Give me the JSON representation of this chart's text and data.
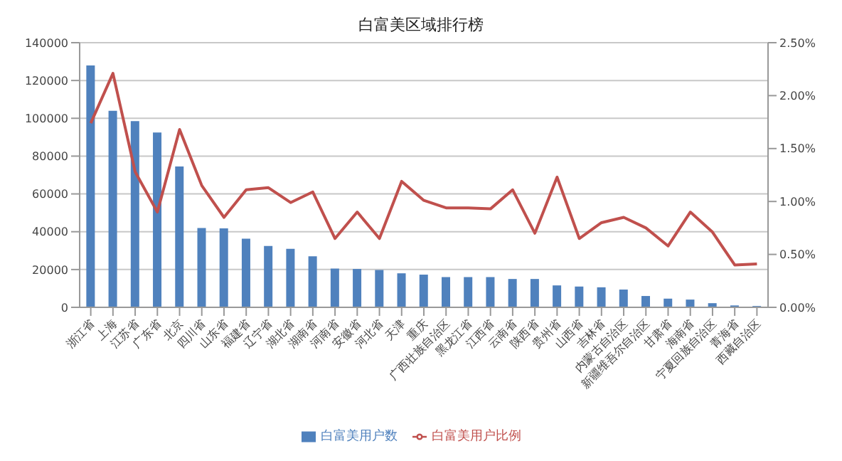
{
  "chart_data": {
    "type": "bar",
    "title": "白富美区域排行榜",
    "categories": [
      "浙江省",
      "上海",
      "江苏省",
      "广东省",
      "北京",
      "四川省",
      "山东省",
      "福建省",
      "辽宁省",
      "湖北省",
      "湖南省",
      "河南省",
      "安徽省",
      "河北省",
      "天津",
      "重庆",
      "广西壮族自治区",
      "黑龙江省",
      "江西省",
      "云南省",
      "陕西省",
      "贵州省",
      "山西省",
      "吉林省",
      "内蒙古自治区",
      "新疆维吾尔自治区",
      "甘肃省",
      "海南省",
      "宁夏回族自治区",
      "青海省",
      "西藏自治区"
    ],
    "series": [
      {
        "name": "白富美用户数",
        "color": "#4f81bd",
        "values": [
          128000,
          104000,
          98500,
          92500,
          74500,
          42000,
          41800,
          36300,
          32500,
          31000,
          27000,
          20500,
          20300,
          19800,
          18000,
          17300,
          16000,
          16000,
          16000,
          15000,
          15000,
          11600,
          11000,
          10600,
          9400,
          6000,
          4600,
          4100,
          2200,
          1000,
          700
        ]
      },
      {
        "name": "白富美用户比例",
        "type": "line",
        "axis": "y2",
        "color": "#c0504d",
        "values": [
          1.74,
          2.21,
          1.28,
          0.9,
          1.68,
          1.15,
          0.85,
          1.11,
          1.13,
          0.99,
          1.09,
          0.65,
          0.9,
          0.65,
          1.19,
          1.01,
          0.94,
          0.94,
          0.93,
          1.11,
          0.7,
          1.23,
          0.65,
          0.8,
          0.85,
          0.75,
          0.58,
          0.9,
          0.71,
          0.4,
          0.41
        ]
      }
    ],
    "ylim": [
      0,
      140000
    ],
    "yticks": [
      0,
      20000,
      40000,
      60000,
      80000,
      100000,
      120000,
      140000
    ],
    "y2lim": [
      0,
      2.5
    ],
    "y2ticks": [
      {
        "value": 0,
        "label": "0.00%"
      },
      {
        "value": 0.5,
        "label": "0.50%"
      },
      {
        "value": 1,
        "label": "1.00%"
      },
      {
        "value": 1.5,
        "label": "1.50%"
      },
      {
        "value": 2,
        "label": "2.00%"
      },
      {
        "value": 2.5,
        "label": "2.50%"
      }
    ],
    "grid": "y",
    "legend": "bottom",
    "marker": "none",
    "line_style": "solid"
  }
}
